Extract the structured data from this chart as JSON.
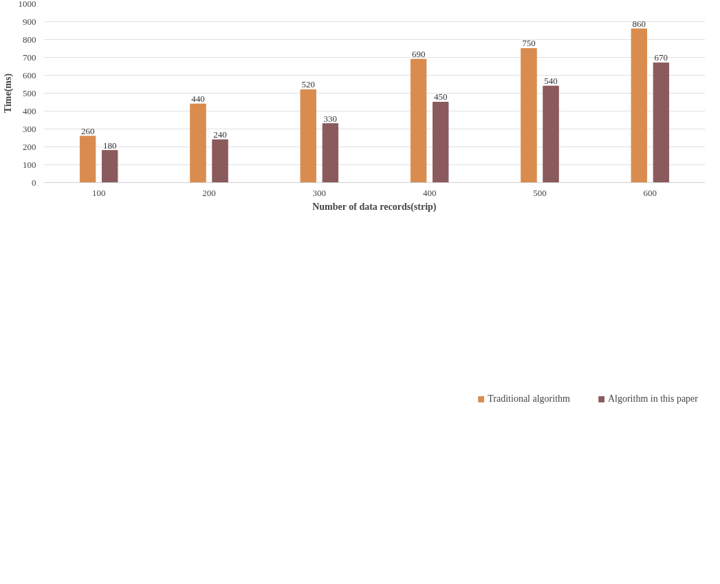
{
  "chart_data": {
    "type": "bar",
    "xlabel": "Number of data records(strip)",
    "ylabel": "Time(ms)",
    "categories": [
      "100",
      "200",
      "300",
      "400",
      "500",
      "600"
    ],
    "series": [
      {
        "name": "Traditional algorithm",
        "color": "#d98c4e",
        "values": [
          260,
          440,
          520,
          690,
          750,
          860
        ]
      },
      {
        "name": "Algorithm in this paper",
        "color": "#8a5a5c",
        "values": [
          180,
          240,
          330,
          450,
          540,
          670
        ]
      }
    ],
    "ylim": [
      0,
      1000
    ],
    "yticks": [
      0,
      100,
      200,
      300,
      400,
      500,
      600,
      700,
      800,
      900,
      1000
    ],
    "grid": "y",
    "legend": "bottom",
    "data_labels": true
  }
}
